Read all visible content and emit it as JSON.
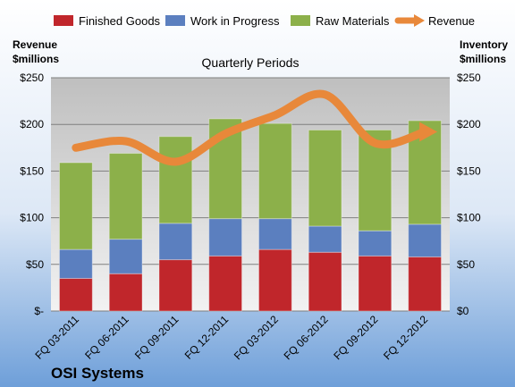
{
  "chart_data": {
    "type": "bar",
    "title": "Quarterly Periods",
    "company": "OSI Systems",
    "y_left_label_lines": [
      "Revenue",
      "$millions"
    ],
    "y_right_label_lines": [
      "Inventory",
      "$millions"
    ],
    "ylim": [
      0,
      250
    ],
    "y_left_ticks": [
      "$-",
      "$50",
      "$100",
      "$150",
      "$200",
      "$250"
    ],
    "y_right_ticks": [
      "$0",
      "$50",
      "$100",
      "$150",
      "$200",
      "$250"
    ],
    "categories": [
      "FQ 03-2011",
      "FQ 06-2011",
      "FQ 09-2011",
      "FQ 12-2011",
      "FQ 03-2012",
      "FQ 06-2012",
      "FQ 09-2012",
      "FQ 12-2012"
    ],
    "stacked": true,
    "grid": true,
    "legend_position": "top",
    "series": [
      {
        "name": "Finished Goods",
        "kind": "bar",
        "color": "#C0262B",
        "values": [
          35,
          40,
          55,
          59,
          66,
          63,
          59,
          58
        ]
      },
      {
        "name": "Work in Progress",
        "kind": "bar",
        "color": "#5B7FBF",
        "values": [
          31,
          37,
          39,
          40,
          33,
          28,
          27,
          35
        ]
      },
      {
        "name": "Raw Materials",
        "kind": "bar",
        "color": "#8CB04A",
        "values": [
          93,
          92,
          93,
          107,
          102,
          103,
          108,
          111
        ]
      },
      {
        "name": "Revenue",
        "kind": "line",
        "color": "#E8883A",
        "values": [
          175,
          182,
          160,
          190,
          210,
          232,
          180,
          192
        ]
      }
    ]
  }
}
